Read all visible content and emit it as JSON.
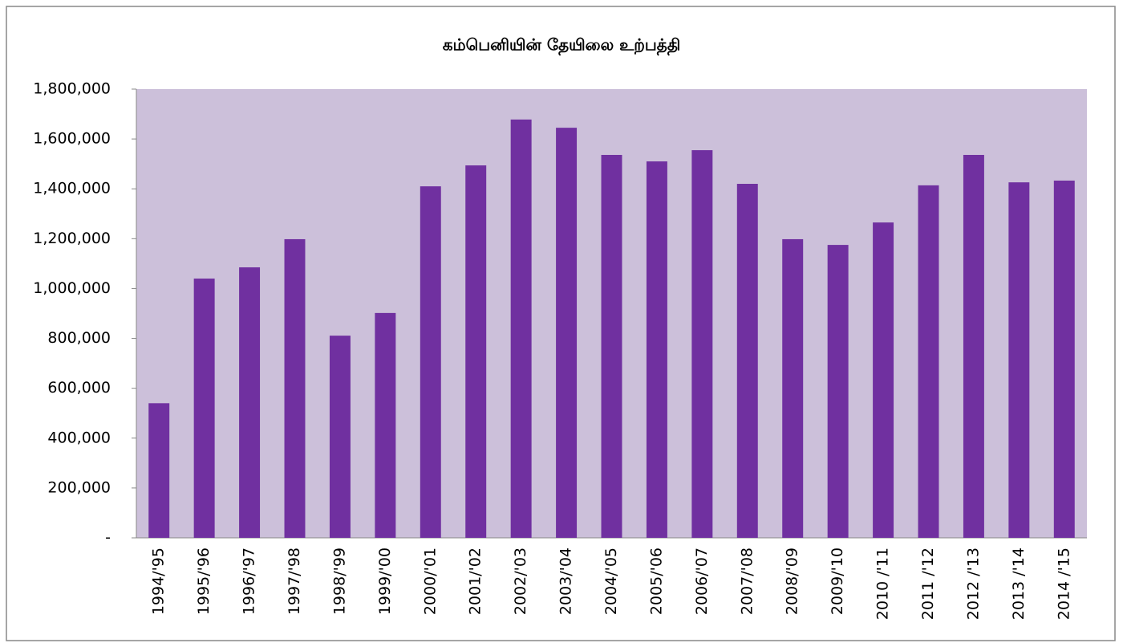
{
  "chart_data": {
    "type": "bar",
    "title": "கம்பெனியின் தேயிலை உற்பத்தி",
    "categories": [
      "1994/'95",
      "1995/'96",
      "1996/'97",
      "1997/'98",
      "1998/'99",
      "1999/'00",
      "2000/'01",
      "2001/'02",
      "2002/'03",
      "2003/'04",
      "2004/'05",
      "2005/'06",
      "2006/'07",
      "2007/'08",
      "2008/'09",
      "2009/'10",
      "2010 /'11",
      "2011 /'12",
      "2012 /'13",
      "2013 /'14",
      "2014 /'15"
    ],
    "values": [
      540000,
      1040000,
      1085000,
      1198000,
      811000,
      902000,
      1410000,
      1494000,
      1678000,
      1645000,
      1536000,
      1510000,
      1555000,
      1420000,
      1198000,
      1175000,
      1265000,
      1414000,
      1536000,
      1426000,
      1433000
    ],
    "color": "#7030a0",
    "plot_background": "#ccc0da",
    "ylim": [
      0,
      1800000
    ],
    "yticks": [
      {
        "value": 0,
        "label": "-"
      },
      {
        "value": 200000,
        "label": "200,000"
      },
      {
        "value": 400000,
        "label": "400,000"
      },
      {
        "value": 600000,
        "label": "600,000"
      },
      {
        "value": 800000,
        "label": "800,000"
      },
      {
        "value": 1000000,
        "label": "1,000,000"
      },
      {
        "value": 1200000,
        "label": "1,200,000"
      },
      {
        "value": 1400000,
        "label": "1,400,000"
      },
      {
        "value": 1600000,
        "label": "1,600,000"
      },
      {
        "value": 1800000,
        "label": "1,800,000"
      }
    ],
    "grid": false
  }
}
